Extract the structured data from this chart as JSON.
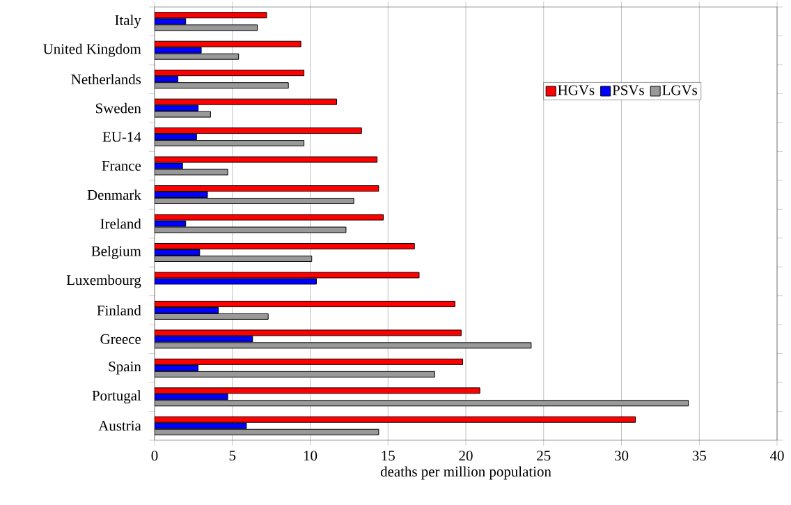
{
  "chart_data": {
    "type": "bar",
    "orientation": "horizontal",
    "xlabel": "deaths per million population",
    "categories": [
      "Italy",
      "United Kingdom",
      "Netherlands",
      "Sweden",
      "EU-14",
      "France",
      "Denmark",
      "Ireland",
      "Belgium",
      "Luxembourg",
      "Finland",
      "Greece",
      "Spain",
      "Portugal",
      "Austria"
    ],
    "series": [
      {
        "name": "HGVs",
        "color": "#ff0000",
        "values": [
          7.2,
          9.4,
          9.6,
          11.7,
          13.3,
          14.3,
          14.4,
          14.7,
          16.7,
          17.0,
          19.3,
          19.7,
          19.8,
          20.9,
          30.9
        ]
      },
      {
        "name": "PSVs",
        "color": "#0000ff",
        "values": [
          2.0,
          3.0,
          1.5,
          2.8,
          2.7,
          1.8,
          3.4,
          2.0,
          2.9,
          10.4,
          4.1,
          6.3,
          2.8,
          4.7,
          5.9
        ]
      },
      {
        "name": "LGVs",
        "color": "#999999",
        "values": [
          6.6,
          5.4,
          8.6,
          3.6,
          9.6,
          4.7,
          12.8,
          12.3,
          10.1,
          null,
          7.3,
          24.2,
          18.0,
          34.3,
          14.4
        ]
      }
    ],
    "xlim": [
      0,
      40
    ],
    "xticks": [
      0,
      5,
      10,
      15,
      20,
      25,
      30,
      35,
      40
    ],
    "grid": "x",
    "legend": "top right"
  }
}
